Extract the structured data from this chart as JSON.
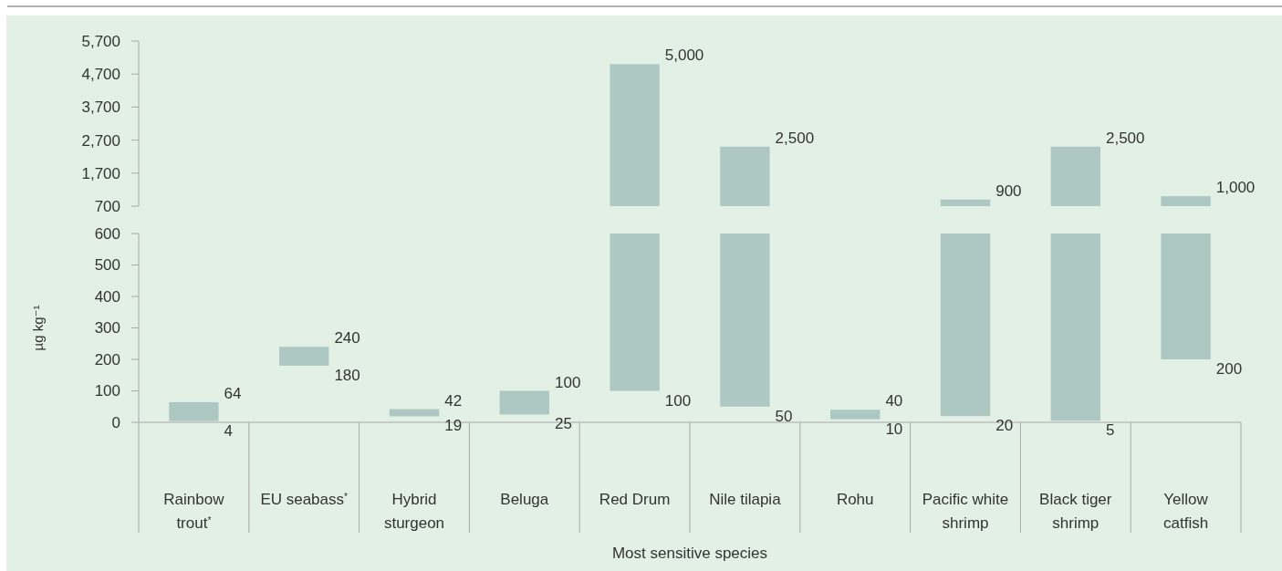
{
  "chart_data": [
    {
      "type": "bar",
      "tick_labels": "y",
      "categories": [
        "Rainbow trout$^{*}$",
        "EU seabass$^{*}$",
        "Hybrid sturgeon",
        "Beluga",
        "Red Drum",
        "Nile tilapia",
        "Rohu",
        "Pacific white shrimp",
        "Black tiger shrimp",
        "Yellow catfish"
      ],
      "base": [
        null,
        null,
        null,
        null,
        700,
        700,
        null,
        700,
        700,
        700
      ],
      "values": [
        null,
        null,
        null,
        null,
        4300,
        1800,
        null,
        200,
        1800,
        300
      ],
      "color": "#adc8c3",
      "ylim": [
        700,
        5700
      ],
      "yticks": [
        700,
        {
          "value": 1700,
          "label": "1,700"
        },
        {
          "value": 2700,
          "label": "2,700"
        },
        {
          "value": 3700,
          "label": "3,700"
        },
        {
          "value": 4700,
          "label": "4,700"
        },
        {
          "value": 5700,
          "label": "5,700"
        }
      ],
      "annotations": [
        {
          "text": "5,000",
          "x": "Red Drum",
          "y": 5000
        },
        {
          "text": "2,500",
          "x": "Nile tilapia",
          "y": 2500
        },
        {
          "text": "900",
          "x": "Pacific white shrimp",
          "y": 900
        },
        {
          "text": "2,500",
          "x": "Black tiger shrimp",
          "y": 2500
        },
        {
          "text": "1,000",
          "x": "Yellow catfish",
          "y": 1000
        }
      ]
    },
    {
      "type": "bar",
      "xlabel": "Most sensitive species",
      "ylabel": "µg kg⁻¹",
      "categories": [
        "Rainbow trout$^{*}$",
        "EU seabass$^{*}$",
        "Hybrid sturgeon",
        "Beluga",
        "Red Drum",
        "Nile tilapia",
        "Rohu",
        "Pacific white shrimp",
        "Black tiger shrimp",
        "Yellow catfish"
      ],
      "base": [
        4,
        180,
        19,
        25,
        100,
        50,
        10,
        20,
        5,
        200
      ],
      "values": [
        60,
        60,
        23,
        75,
        500,
        550,
        30,
        580,
        595,
        400
      ],
      "color": "#adc8c3",
      "ylim": [
        0,
        600
      ],
      "yticks": [
        0,
        100,
        200,
        300,
        400,
        500,
        600
      ],
      "annotations": [
        {
          "text": "64",
          "x": "Rainbow trout$^{*}$",
          "y": 64
        },
        {
          "text": "4",
          "x": "Rainbow trout$^{*}$",
          "y": 4
        },
        {
          "text": "240",
          "x": "EU seabass$^{*}$",
          "y": 240
        },
        {
          "text": "180",
          "x": "EU seabass$^{*}$",
          "y": 180
        },
        {
          "text": "42",
          "x": "Hybrid sturgeon",
          "y": 42
        },
        {
          "text": "19",
          "x": "Hybrid sturgeon",
          "y": 19
        },
        {
          "text": "100",
          "x": "Beluga",
          "y": 100
        },
        {
          "text": "25",
          "x": "Beluga",
          "y": 25
        },
        {
          "text": "100",
          "x": "Red Drum",
          "y": 100
        },
        {
          "text": "50",
          "x": "Nile tilapia",
          "y": 50
        },
        {
          "text": "40",
          "x": "Rohu",
          "y": 40
        },
        {
          "text": "10",
          "x": "Rohu",
          "y": 10
        },
        {
          "text": "20",
          "x": "Pacific white shrimp",
          "y": 20
        },
        {
          "text": "5",
          "x": "Black tiger shrimp",
          "y": 5
        },
        {
          "text": "200",
          "x": "Yellow catfish",
          "y": 200
        }
      ]
    }
  ]
}
